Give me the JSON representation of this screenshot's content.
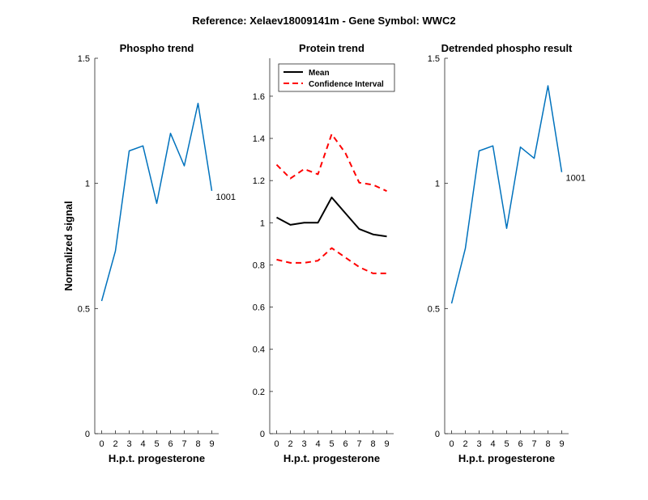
{
  "figure": {
    "suptitle": "Reference:  Xelaev18009141m - Gene Symbol:  WWC2"
  },
  "chart_data": [
    {
      "type": "line",
      "title": "Phospho trend",
      "xlabel": "H.p.t. progesterone",
      "ylabel": "Normalized signal",
      "categories": [
        "0",
        "2",
        "3",
        "4",
        "5",
        "6",
        "7",
        "8",
        "9"
      ],
      "xlim": [
        -0.5,
        8.5
      ],
      "ylim": [
        0,
        1.5
      ],
      "yticks": [
        0,
        0.5,
        1,
        1.5
      ],
      "ytick_labels": [
        "0",
        "0.5",
        "1",
        "1.5"
      ],
      "series": [
        {
          "values": [
            0.53,
            0.73,
            1.13,
            1.15,
            0.92,
            1.2,
            1.07,
            1.32,
            0.97
          ],
          "color": "#0072bd",
          "style": "solid"
        }
      ],
      "annotations": [
        {
          "text": "1001",
          "x_index": 8
        }
      ],
      "grid": false
    },
    {
      "type": "line",
      "title": "Protein trend",
      "xlabel": "H.p.t. progesterone",
      "ylabel": "",
      "categories": [
        "0",
        "2",
        "3",
        "4",
        "5",
        "6",
        "7",
        "8",
        "9"
      ],
      "xlim": [
        -0.5,
        8.5
      ],
      "ylim": [
        0,
        1.78
      ],
      "yticks": [
        0,
        0.2,
        0.4,
        0.6,
        0.8,
        1,
        1.2,
        1.4,
        1.6
      ],
      "ytick_labels": [
        "0",
        "0.2",
        "0.4",
        "0.6",
        "0.8",
        "1",
        "1.2",
        "1.4",
        "1.6"
      ],
      "series": [
        {
          "name": "Mean",
          "values": [
            1.025,
            0.99,
            1.0,
            1.0,
            1.12,
            1.045,
            0.97,
            0.945,
            0.935
          ],
          "color": "#000000",
          "style": "solid"
        },
        {
          "name": "Confidence Interval",
          "values": [
            1.275,
            1.21,
            1.255,
            1.23,
            1.42,
            1.33,
            1.19,
            1.18,
            1.15
          ],
          "color": "#ff0000",
          "style": "dashed"
        },
        {
          "name": "Confidence Interval",
          "values": [
            0.825,
            0.81,
            0.81,
            0.82,
            0.88,
            0.835,
            0.79,
            0.76,
            0.76
          ],
          "color": "#ff0000",
          "style": "dashed"
        }
      ],
      "legend": {
        "placement": "top-left",
        "entries": [
          {
            "label": "Mean",
            "color": "#000000",
            "style": "solid"
          },
          {
            "label": "Confidence Interval",
            "color": "#ff0000",
            "style": "dashed"
          }
        ]
      },
      "grid": false
    },
    {
      "type": "line",
      "title": "Detrended phospho result",
      "xlabel": "H.p.t. progesterone",
      "ylabel": "",
      "categories": [
        "0",
        "2",
        "3",
        "4",
        "5",
        "6",
        "7",
        "8",
        "9"
      ],
      "xlim": [
        -0.5,
        8.5
      ],
      "ylim": [
        0,
        1.5
      ],
      "yticks": [
        0,
        0.5,
        1,
        1.5
      ],
      "ytick_labels": [
        "0",
        "0.5",
        "1",
        "1.5"
      ],
      "series": [
        {
          "values": [
            0.52,
            0.74,
            1.13,
            1.15,
            0.82,
            1.145,
            1.1,
            1.39,
            1.045
          ],
          "color": "#0072bd",
          "style": "solid"
        }
      ],
      "annotations": [
        {
          "text": "1001",
          "x_index": 8
        }
      ],
      "grid": false
    }
  ]
}
